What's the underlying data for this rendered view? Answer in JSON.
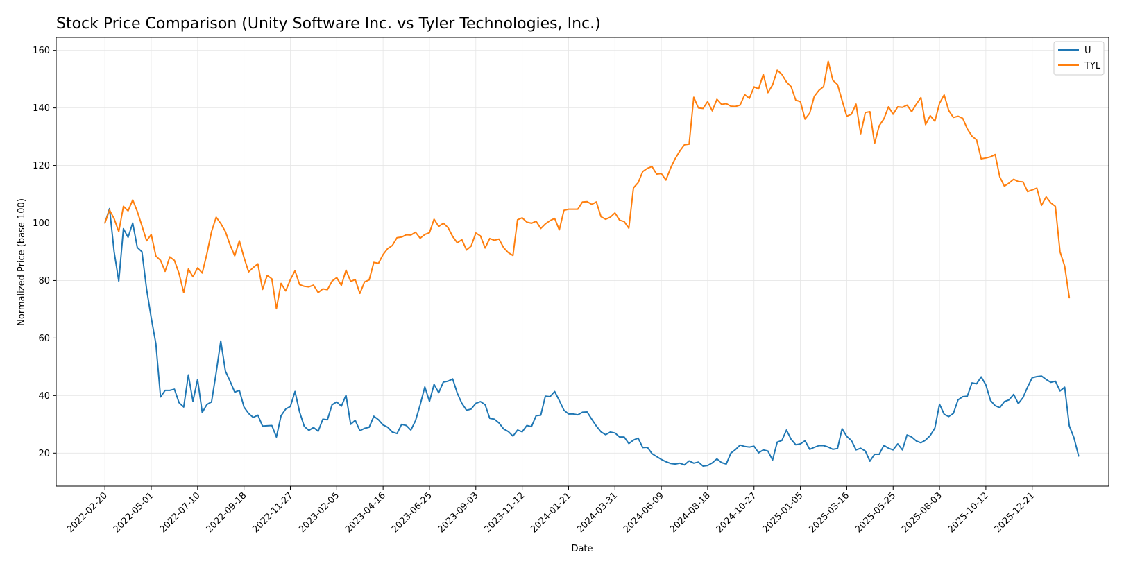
{
  "chart_data": {
    "type": "line",
    "title": "Stock Price Comparison (Unity Software Inc. vs Tyler Technologies, Inc.)",
    "xlabel": "Date",
    "ylabel": "Normalized Price (base 100)",
    "ylim": [
      8.5,
      164.5
    ],
    "yticks": [
      20,
      40,
      60,
      80,
      100,
      120,
      140,
      160
    ],
    "xtick_labels": [
      "2022-02-20",
      "2022-05-01",
      "2022-07-10",
      "2022-09-18",
      "2022-11-27",
      "2023-02-05",
      "2023-04-16",
      "2023-06-25",
      "2023-09-03",
      "2023-11-12",
      "2024-01-21",
      "2024-03-31",
      "2024-06-09",
      "2024-08-18",
      "2024-10-27",
      "2025-01-05",
      "2025-03-16",
      "2025-05-25",
      "2025-08-03",
      "2025-10-12",
      "2025-12-21"
    ],
    "xtick_index": [
      0,
      10,
      20,
      30,
      40,
      50,
      60,
      70,
      80,
      90,
      100,
      110,
      120,
      130,
      140,
      150,
      160,
      170,
      180,
      190,
      200
    ],
    "x_range": [
      -10.5,
      216.5
    ],
    "grid": true,
    "legend_position": "top-right",
    "colors": {
      "U": "#1f77b4",
      "TYL": "#ff7f0e",
      "grid": "#e6e6e6"
    },
    "series": [
      {
        "name": "U",
        "values": [
          100,
          105,
          90,
          79.8,
          98,
          95,
          100,
          91.5,
          90,
          77,
          67,
          58,
          39.5,
          41.8,
          41.8,
          42.2,
          37.5,
          36,
          47.2,
          38,
          45.6,
          34.1,
          36.9,
          37.8,
          48,
          59,
          48.5,
          45,
          41.2,
          41.8,
          36,
          33.8,
          32.4,
          33.2,
          29.4,
          29.5,
          29.6,
          25.6,
          33,
          35.3,
          36.2,
          41.4,
          34.3,
          29.3,
          27.9,
          28.9,
          27.6,
          31.8,
          31.6,
          36.8,
          37.8,
          36.3,
          40.1,
          30,
          31.4,
          27.8,
          28.6,
          29,
          32.8,
          31.6,
          29.8,
          29,
          27.3,
          26.8,
          30,
          29.6,
          28,
          31.3,
          36.8,
          43,
          38,
          43.9,
          41,
          44.7,
          45,
          45.8,
          40.8,
          37.3,
          34.9,
          35.3,
          37.3,
          37.9,
          36.8,
          32.1,
          31.8,
          30.5,
          28.4,
          27.5,
          25.9,
          28,
          27.4,
          29.6,
          29.2,
          33,
          33.2,
          39.8,
          39.6,
          41.4,
          38.3,
          34.9,
          33.6,
          33.6,
          33.3,
          34.2,
          34.3,
          31.8,
          29.4,
          27.4,
          26.4,
          27.3,
          27,
          25.6,
          25.6,
          23.3,
          24.5,
          25.2,
          21.9,
          22,
          19.8,
          18.8,
          17.8,
          17,
          16.4,
          16.2,
          16.5,
          15.9,
          17.3,
          16.5,
          16.9,
          15.5,
          15.7,
          16.6,
          18,
          16.7,
          16.2,
          20,
          21.2,
          22.8,
          22.3,
          22.1,
          22.4,
          20.1,
          21.1,
          20.7,
          17.6,
          23.8,
          24.4,
          28,
          24.8,
          22.9,
          23.2,
          24.3,
          21.3,
          22,
          22.6,
          22.6,
          22.1,
          21.3,
          21.6,
          28.5,
          25.8,
          24.4,
          21.1,
          21.7,
          20.7,
          17.2,
          19.6,
          19.6,
          22.7,
          21.7,
          21.1,
          23.2,
          21.1,
          26.3,
          25.6,
          24.2,
          23.6,
          24.5,
          26.1,
          28.7,
          37,
          33.5,
          32.7,
          33.8,
          38.5,
          39.6,
          39.8,
          44.4,
          44.1,
          46.5,
          43.7,
          38.3,
          36.5,
          35.8,
          37.9,
          38.5,
          40.4,
          37.2,
          39.3,
          43,
          46.2,
          46.6,
          46.8,
          45.6,
          44.6,
          45,
          41.6,
          42.9,
          29.4,
          25.3,
          19
        ]
      },
      {
        "name": "TYL",
        "values": [
          100,
          104.5,
          101.5,
          97,
          105.8,
          104.2,
          108,
          104,
          99,
          93.8,
          96,
          88.5,
          87,
          83.2,
          88.2,
          87,
          82.4,
          75.8,
          84,
          81.3,
          84.4,
          82.6,
          89.3,
          97,
          102,
          99.8,
          97,
          92.4,
          88.6,
          93.8,
          88,
          83,
          84.5,
          85.8,
          76.9,
          81.8,
          80.6,
          70.2,
          79,
          76.4,
          80.3,
          83.4,
          78.6,
          78,
          77.8,
          78.4,
          75.8,
          77.1,
          76.8,
          79.8,
          81,
          78.3,
          83.6,
          79.7,
          80.3,
          75.5,
          79.5,
          80.2,
          86.3,
          86,
          89,
          91.1,
          92.2,
          94.9,
          95.1,
          95.9,
          95.8,
          96.8,
          94.7,
          96,
          96.6,
          101.3,
          98.8,
          99.9,
          98.4,
          95.3,
          93.1,
          94.2,
          90.6,
          92,
          96.5,
          95.5,
          91.3,
          94.6,
          94,
          94.4,
          91.4,
          89.7,
          88.7,
          101.1,
          101.8,
          100.3,
          99.9,
          100.6,
          98.1,
          99.7,
          100.8,
          101.6,
          97.6,
          104.4,
          104.8,
          104.8,
          104.8,
          107.3,
          107.4,
          106.5,
          107.3,
          102.2,
          101.3,
          102,
          103.5,
          101,
          100.5,
          98.2,
          112.2,
          114,
          117.9,
          119,
          119.6,
          117,
          117.2,
          114.9,
          119.1,
          122.4,
          125,
          127.2,
          127.4,
          143.7,
          140,
          139.8,
          142.2,
          139,
          143,
          141.2,
          141.5,
          140.6,
          140.5,
          141,
          144.6,
          143.3,
          147.3,
          146.6,
          151.7,
          145.3,
          148,
          153.1,
          151.7,
          149,
          147.4,
          142.7,
          142.2,
          136.1,
          138.2,
          144,
          146.1,
          147.4,
          156.2,
          149.6,
          148.1,
          142.6,
          137.1,
          137.8,
          141.3,
          131,
          138.4,
          138.7,
          127.6,
          133.8,
          136.2,
          140.4,
          137.8,
          140.4,
          140.2,
          141,
          138.7,
          141.3,
          143.6,
          134.2,
          137.3,
          135.4,
          141.6,
          144.5,
          139.1,
          136.7,
          137.1,
          136.4,
          132.7,
          130.2,
          128.9,
          122.3,
          122.6,
          123,
          123.8,
          116,
          112.8,
          113.9,
          115.2,
          114.4,
          114.3,
          110.9,
          111.5,
          112.1,
          106.1,
          109.1,
          107,
          105.8,
          90,
          85,
          74
        ]
      }
    ]
  }
}
